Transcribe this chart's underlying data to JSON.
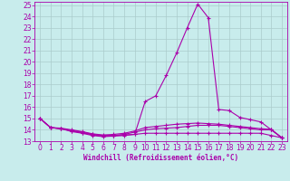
{
  "xlabel": "Windchill (Refroidissement éolien,°C)",
  "background_color": "#c8ecec",
  "line_color": "#aa00aa",
  "grid_color": "#aacccc",
  "spine_color": "#6699aa",
  "xlim": [
    -0.5,
    23.5
  ],
  "ylim": [
    13,
    25.3
  ],
  "yticks": [
    13,
    14,
    15,
    16,
    17,
    18,
    19,
    20,
    21,
    22,
    23,
    24,
    25
  ],
  "xticks": [
    0,
    1,
    2,
    3,
    4,
    5,
    6,
    7,
    8,
    9,
    10,
    11,
    12,
    13,
    14,
    15,
    16,
    17,
    18,
    19,
    20,
    21,
    22,
    23
  ],
  "curves": [
    {
      "x": [
        0,
        1,
        2,
        3,
        4,
        5,
        6,
        7,
        8,
        9,
        10,
        11,
        12,
        13,
        14,
        15,
        16,
        17,
        18,
        19,
        20,
        21,
        22,
        23
      ],
      "y": [
        15.0,
        14.2,
        14.1,
        13.85,
        13.7,
        13.5,
        13.4,
        13.45,
        13.5,
        13.6,
        16.5,
        17.0,
        18.8,
        20.8,
        23.0,
        25.1,
        23.9,
        15.8,
        15.7,
        15.1,
        14.9,
        14.7,
        14.0,
        13.3
      ]
    },
    {
      "x": [
        0,
        1,
        2,
        3,
        4,
        5,
        6,
        7,
        8,
        9,
        10,
        11,
        12,
        13,
        14,
        15,
        16,
        17,
        18,
        19,
        20,
        21,
        22,
        23
      ],
      "y": [
        15.0,
        14.2,
        14.1,
        13.9,
        13.75,
        13.55,
        13.45,
        13.5,
        13.55,
        13.6,
        13.7,
        13.7,
        13.7,
        13.7,
        13.7,
        13.7,
        13.7,
        13.7,
        13.7,
        13.7,
        13.7,
        13.7,
        13.5,
        13.3
      ]
    },
    {
      "x": [
        0,
        1,
        2,
        3,
        4,
        5,
        6,
        7,
        8,
        9,
        10,
        11,
        12,
        13,
        14,
        15,
        16,
        17,
        18,
        19,
        20,
        21,
        22,
        23
      ],
      "y": [
        15.0,
        14.2,
        14.1,
        13.95,
        13.8,
        13.6,
        13.5,
        13.5,
        13.6,
        13.8,
        14.0,
        14.1,
        14.15,
        14.2,
        14.3,
        14.4,
        14.4,
        14.4,
        14.3,
        14.2,
        14.1,
        14.0,
        14.0,
        13.3
      ]
    },
    {
      "x": [
        0,
        1,
        2,
        3,
        4,
        5,
        6,
        7,
        8,
        9,
        10,
        11,
        12,
        13,
        14,
        15,
        16,
        17,
        18,
        19,
        20,
        21,
        22,
        23
      ],
      "y": [
        15.0,
        14.2,
        14.15,
        14.0,
        13.85,
        13.65,
        13.55,
        13.6,
        13.7,
        13.9,
        14.2,
        14.3,
        14.4,
        14.5,
        14.55,
        14.6,
        14.55,
        14.5,
        14.4,
        14.3,
        14.2,
        14.1,
        14.05,
        13.3
      ]
    }
  ],
  "marker": "+",
  "markersize": 3,
  "linewidth": 0.8,
  "tick_fontsize": 5.5,
  "xlabel_fontsize": 5.5
}
